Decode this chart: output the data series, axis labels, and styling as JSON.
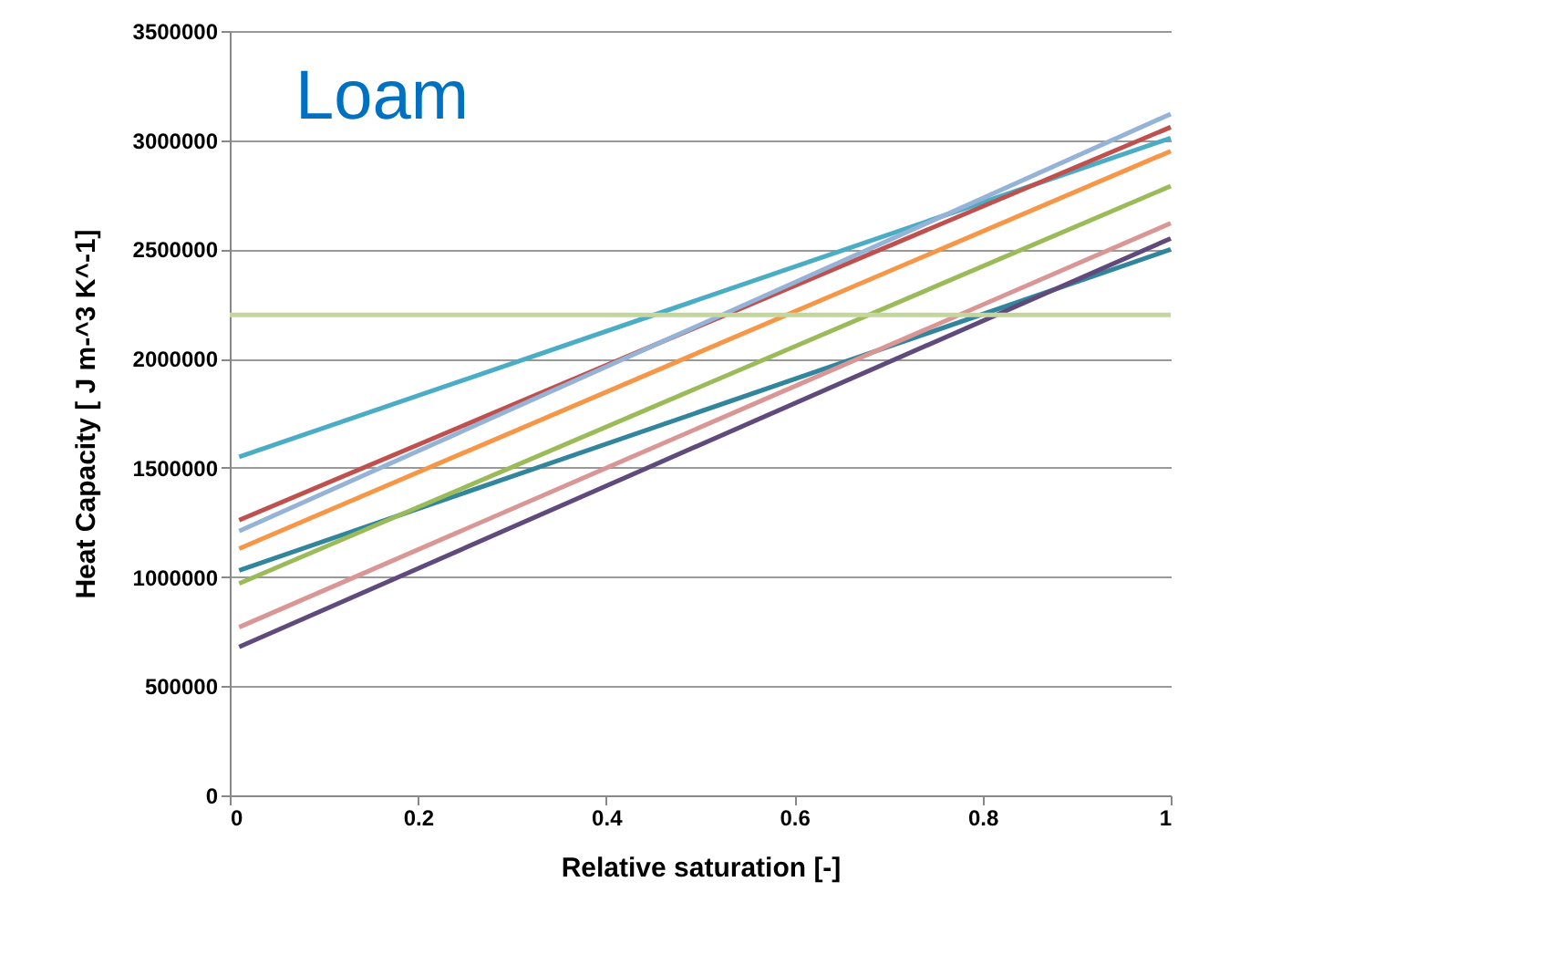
{
  "chart_data": {
    "type": "line",
    "title": "Loam",
    "xlabel": "Relative saturation [-]",
    "ylabel": "Heat Capacity [ J m-^3 K^-1]",
    "xlim": [
      0,
      1
    ],
    "xticks": [
      0,
      0.2,
      0.4,
      0.6,
      0.8,
      1
    ],
    "ylim": [
      0,
      3500000
    ],
    "yticks": [
      0,
      500000,
      1000000,
      1500000,
      2000000,
      2500000,
      3000000,
      3500000
    ],
    "grid": "y",
    "legend": false,
    "marker": "none",
    "line_style": "solid",
    "series": [
      {
        "color": "#4bacc6",
        "x": [
          0.01,
          1
        ],
        "values": [
          1550000,
          3010000
        ]
      },
      {
        "color": "#c0504d",
        "x": [
          0.01,
          1
        ],
        "values": [
          1260000,
          3060000
        ]
      },
      {
        "color": "#95b3d7",
        "x": [
          0.01,
          1
        ],
        "values": [
          1210000,
          3120000
        ]
      },
      {
        "color": "#f79646",
        "x": [
          0.01,
          1
        ],
        "values": [
          1130000,
          2950000
        ]
      },
      {
        "color": "#31859c",
        "x": [
          0.01,
          1
        ],
        "values": [
          1030000,
          2500000
        ]
      },
      {
        "color": "#9bbb59",
        "x": [
          0.01,
          1
        ],
        "values": [
          970000,
          2790000
        ]
      },
      {
        "color": "#d99694",
        "x": [
          0.01,
          1
        ],
        "values": [
          770000,
          2620000
        ]
      },
      {
        "color": "#604a7b",
        "x": [
          0.01,
          1
        ],
        "values": [
          680000,
          2550000
        ]
      },
      {
        "color": "#c3d69b",
        "x": [
          0,
          1
        ],
        "values": [
          2200000,
          2200000
        ]
      }
    ]
  }
}
